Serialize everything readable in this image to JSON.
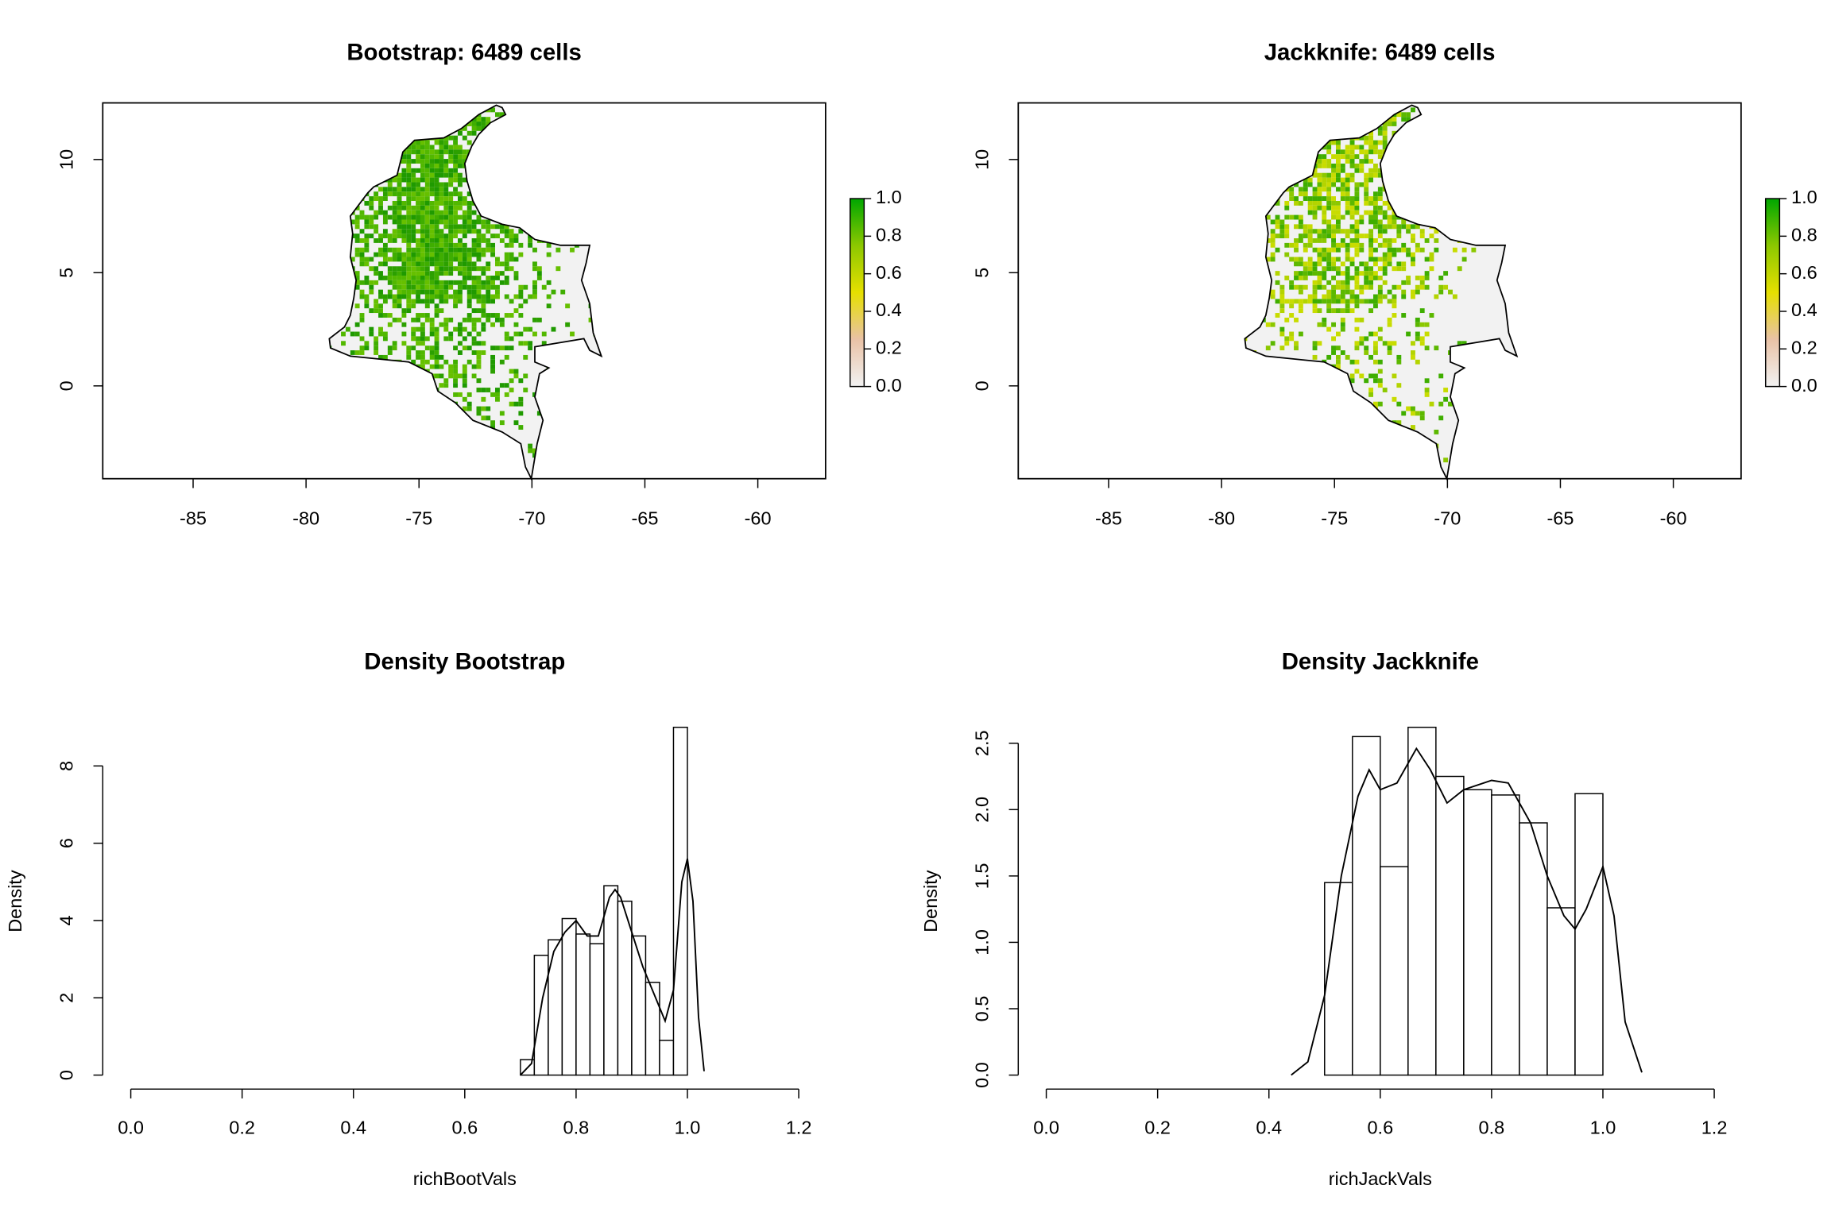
{
  "chart_data": [
    {
      "type": "map",
      "title": "Bootstrap: 6489 cells",
      "xlim": [
        -89,
        -57
      ],
      "xticks": [
        -85,
        -80,
        -75,
        -70,
        -65,
        -60
      ],
      "ylim": [
        -4.1,
        12.5
      ],
      "yticks": [
        0,
        5,
        10
      ],
      "zlim": [
        0,
        1
      ],
      "zticks": [
        {
          "value": 0,
          "label": "0.0"
        },
        0.2,
        0.4,
        0.6,
        0.8,
        {
          "value": 1,
          "label": "1.0"
        }
      ],
      "colorbar_colors": [
        "#f2f2f2",
        "#e9c2a6",
        "#e6e000",
        "#8cc800",
        "#00a600"
      ],
      "cell_colors": [
        "#2ca000",
        "#3fae00",
        "#52b800",
        "#1f9a00",
        "#66c000"
      ]
    },
    {
      "type": "map",
      "title": "Jackknife: 6489 cells",
      "xlim": [
        -89,
        -57
      ],
      "xticks": [
        -85,
        -80,
        -75,
        -70,
        -65,
        -60
      ],
      "ylim": [
        -4.1,
        12.5
      ],
      "yticks": [
        0,
        5,
        10
      ],
      "zlim": [
        0,
        1
      ],
      "zticks": [
        {
          "value": 0,
          "label": "0.0"
        },
        0.2,
        0.4,
        0.6,
        0.8,
        {
          "value": 1,
          "label": "1.0"
        }
      ],
      "colorbar_colors": [
        "#f2f2f2",
        "#e9c2a6",
        "#e6e000",
        "#8cc800",
        "#00a600"
      ],
      "cell_colors": [
        "#5cb800",
        "#8cc800",
        "#b4d400",
        "#3fae00",
        "#c8dc00"
      ]
    },
    {
      "type": "histogram",
      "title": "Density Bootstrap",
      "xlabel": "richBootVals",
      "ylabel": "Density",
      "bins": [
        0.7,
        0.725,
        0.75,
        0.775,
        0.8,
        0.825,
        0.85,
        0.875,
        0.9,
        0.925,
        0.95,
        0.975,
        1.0
      ],
      "values": [
        0.4,
        3.1,
        3.5,
        4.05,
        3.65,
        3.4,
        4.9,
        4.5,
        3.6,
        2.4,
        0.9,
        9.0
      ],
      "curve_x": [
        0.7,
        0.72,
        0.74,
        0.76,
        0.78,
        0.8,
        0.82,
        0.84,
        0.86,
        0.87,
        0.88,
        0.9,
        0.92,
        0.94,
        0.96,
        0.975,
        0.99,
        1.0,
        1.01,
        1.02,
        1.03
      ],
      "curve_values": [
        0,
        0.3,
        2.0,
        3.2,
        3.7,
        4.0,
        3.6,
        3.6,
        4.6,
        4.8,
        4.6,
        3.7,
        2.8,
        2.1,
        1.4,
        2.2,
        5.0,
        5.6,
        4.5,
        1.5,
        0.1
      ],
      "xlim": [
        0,
        1.2
      ],
      "xticks": [
        {
          "value": 0,
          "label": "0.0"
        },
        0.2,
        0.4,
        0.6,
        0.8,
        {
          "value": 1,
          "label": "1.0"
        },
        1.2
      ],
      "ylim": [
        0,
        9
      ],
      "yticks": [
        0,
        2,
        4,
        6,
        8
      ]
    },
    {
      "type": "histogram",
      "title": "Density Jackknife",
      "xlabel": "richJackVals",
      "ylabel": "Density",
      "bins": [
        0.5,
        0.55,
        0.6,
        0.65,
        0.7,
        0.75,
        0.8,
        0.85,
        0.9,
        0.95,
        1.0
      ],
      "values": [
        1.45,
        2.55,
        1.57,
        2.62,
        2.25,
        2.15,
        2.11,
        1.9,
        1.26,
        2.12
      ],
      "curve_x": [
        0.44,
        0.47,
        0.5,
        0.53,
        0.56,
        0.58,
        0.6,
        0.63,
        0.665,
        0.69,
        0.72,
        0.75,
        0.8,
        0.83,
        0.87,
        0.9,
        0.93,
        0.95,
        0.97,
        1.0,
        1.02,
        1.04,
        1.07
      ],
      "curve_values": [
        0,
        0.1,
        0.6,
        1.5,
        2.1,
        2.3,
        2.15,
        2.2,
        2.46,
        2.3,
        2.05,
        2.15,
        2.22,
        2.2,
        1.9,
        1.5,
        1.2,
        1.1,
        1.25,
        1.57,
        1.2,
        0.4,
        0.02
      ],
      "xlim": [
        0,
        1.2
      ],
      "xticks": [
        {
          "value": 0,
          "label": "0.0"
        },
        0.2,
        0.4,
        0.6,
        0.8,
        {
          "value": 1,
          "label": "1.0"
        },
        1.2
      ],
      "ylim": [
        0,
        2.62
      ],
      "yticks": [
        {
          "value": 0,
          "label": "0.0"
        },
        0.5,
        {
          "value": 1,
          "label": "1.0"
        },
        1.5,
        {
          "value": 2,
          "label": "2.0"
        },
        2.5
      ]
    }
  ]
}
